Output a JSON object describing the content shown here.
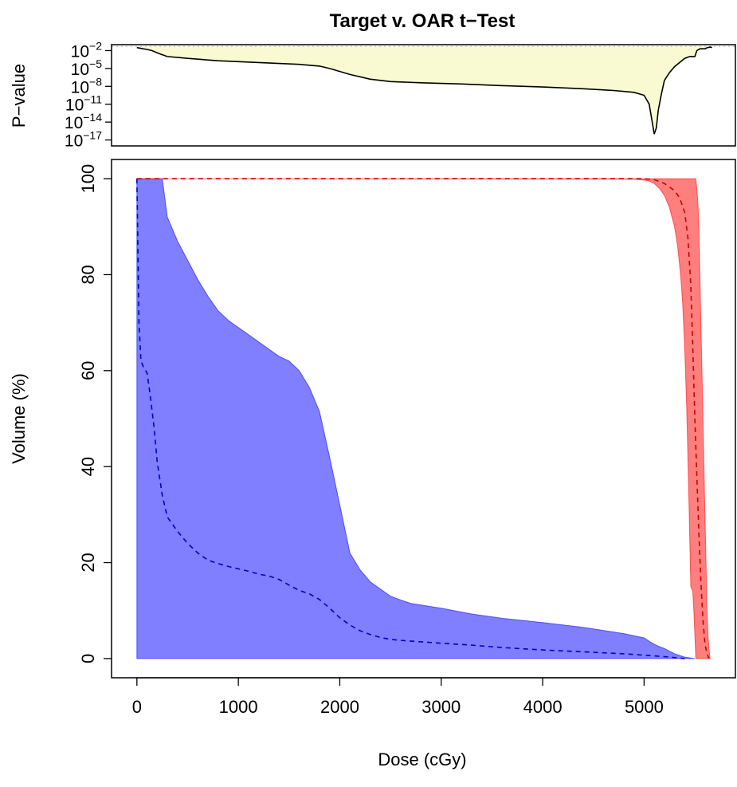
{
  "chart_data": [
    {
      "type": "line",
      "title": "Target v. OAR t−Test",
      "xlabel": "",
      "ylabel": "P−value",
      "yscale": "log10",
      "ylim": [
        1e-18,
        0.1
      ],
      "xlim": [
        -250,
        5900
      ],
      "yticks": [
        {
          "base": "10",
          "exp": "−2",
          "value": 0.01
        },
        {
          "base": "10",
          "exp": "−5",
          "value": 1e-05
        },
        {
          "base": "10",
          "exp": "−8",
          "value": 1e-08
        },
        {
          "base": "10",
          "exp": "−11",
          "value": 1e-11
        },
        {
          "base": "10",
          "exp": "−14",
          "value": 1e-14
        },
        {
          "base": "10",
          "exp": "−17",
          "value": 1e-17
        }
      ],
      "significance_level": 0.05,
      "x": [
        0,
        60,
        100,
        150,
        220,
        300,
        500,
        800,
        1200,
        1600,
        1800,
        1850,
        1900,
        2000,
        2100,
        2300,
        2500,
        2800,
        3200,
        3600,
        4000,
        4400,
        4700,
        4900,
        5000,
        5050,
        5080,
        5100,
        5120,
        5140,
        5170,
        5200,
        5250,
        5300,
        5350,
        5400,
        5450,
        5500,
        5520,
        5550,
        5600,
        5620,
        5650,
        5670
      ],
      "y": [
        0.0316,
        0.02,
        0.0158,
        0.01,
        0.00316,
        0.001,
        0.0005,
        0.0002,
        0.0001,
        5e-05,
        2.5e-05,
        1.6e-05,
        1e-05,
        3.2e-06,
        1e-06,
        1.6e-07,
        6.3e-08,
        4e-08,
        2.5e-08,
        1.3e-08,
        7.9e-09,
        4e-09,
        2e-09,
        1e-09,
        3.2e-10,
        1e-11,
        1e-14,
        1e-16,
        1e-15,
        1e-12,
        5e-10,
        1e-07,
        2e-06,
        2e-05,
        0.0001,
        0.0005,
        0.001,
        0.001,
        0.01,
        0.02,
        0.02,
        0.03,
        0.04,
        0.032
      ],
      "grid": false
    },
    {
      "type": "area",
      "title": "",
      "xlabel": "Dose (cGy)",
      "ylabel": "Volume (%)",
      "xlim": [
        -250,
        5900
      ],
      "ylim": [
        -4,
        104
      ],
      "xticks": [
        0,
        1000,
        2000,
        3000,
        4000,
        5000
      ],
      "yticks": [
        0,
        20,
        40,
        60,
        80,
        100
      ],
      "grid": false,
      "series": [
        {
          "color": "#0000ff",
          "fill_opacity": 0.5,
          "upper": {
            "x": [
              0,
              100,
              200,
              250,
              300,
              400,
              500,
              600,
              700,
              800,
              900,
              1000,
              1100,
              1200,
              1300,
              1400,
              1500,
              1600,
              1700,
              1800,
              1900,
              2000,
              2100,
              2200,
              2300,
              2400,
              2500,
              2600,
              2700,
              3000,
              3300,
              3600,
              4000,
              4400,
              4800,
              5000,
              5050,
              5100,
              5150,
              5200,
              5300,
              5400,
              5500
            ],
            "y": [
              100,
              100,
              100,
              100,
              92,
              87,
              83,
              79,
              75.5,
              72.5,
              70.5,
              69,
              67.5,
              66,
              64.5,
              63,
              62,
              60,
              56.5,
              51.5,
              42,
              32,
              22,
              18.5,
              16,
              14.5,
              13,
              12.2,
              11.5,
              10.5,
              9.3,
              8.4,
              7.5,
              6.5,
              5.2,
              4.3,
              3.6,
              3,
              2.5,
              2.1,
              1,
              0.3,
              0
            ]
          },
          "lower": {
            "x": [
              0,
              5500
            ],
            "y": [
              0,
              0
            ]
          },
          "mean": {
            "x": [
              0,
              10,
              20,
              40,
              70,
              100,
              130,
              170,
              200,
              250,
              300,
              400,
              500,
              600,
              700,
              800,
              900,
              1000,
              1100,
              1200,
              1300,
              1400,
              1500,
              1600,
              1700,
              1800,
              1900,
              2000,
              2100,
              2200,
              2300,
              2400,
              2500,
              2600,
              2800,
              3000,
              3300,
              3600,
              4000,
              4400,
              4800,
              5000,
              5200,
              5400
            ],
            "y": [
              100,
              85,
              70,
              62,
              60.5,
              59.5,
              55,
              48,
              41,
              34,
              29.5,
              26.5,
              24,
              22,
              20.5,
              19.8,
              19.2,
              18.7,
              18.2,
              17.6,
              17.2,
              16.5,
              15.3,
              14.2,
              13.5,
              12.3,
              10.5,
              8.5,
              7,
              5.8,
              5,
              4.4,
              4,
              3.8,
              3.5,
              3.2,
              2.8,
              2.3,
              1.8,
              1.4,
              1,
              0.7,
              0.4,
              0
            ]
          }
        },
        {
          "color": "#ff0000",
          "fill_opacity": 0.5,
          "upper": {
            "x": [
              0,
              5000,
              5300,
              5500,
              5510,
              5520,
              5530,
              5540,
              5550,
              5560,
              5570,
              5580,
              5590,
              5600,
              5610,
              5620,
              5630,
              5640,
              5650
            ],
            "y": [
              100,
              100,
              100,
              100,
              100,
              98,
              95,
              90,
              80,
              70,
              60,
              50,
              40,
              30,
              20,
              10,
              5,
              2,
              0
            ]
          },
          "lower": {
            "x": [
              0,
              4900,
              5000,
              5050,
              5100,
              5150,
              5200,
              5250,
              5300,
              5330,
              5360,
              5380,
              5400,
              5420,
              5440,
              5460,
              5480,
              5490,
              5500,
              5510
            ],
            "y": [
              100,
              99.9,
              99.7,
              99.5,
              99,
              98,
              96.5,
              94,
              90,
              86,
              80,
              74,
              65,
              52,
              35,
              15,
              14,
              10,
              5,
              0
            ]
          },
          "mean": {
            "x": [
              0,
              5000,
              5100,
              5200,
              5300,
              5350,
              5400,
              5430,
              5460,
              5480,
              5500,
              5520,
              5540,
              5560,
              5580,
              5600,
              5620,
              5640
            ],
            "y": [
              100,
              100,
              99.8,
              99,
              97.5,
              96,
              93,
              88,
              78,
              65,
              50,
              38,
              26,
              16,
              8,
              3,
              1,
              0
            ]
          }
        }
      ]
    }
  ]
}
